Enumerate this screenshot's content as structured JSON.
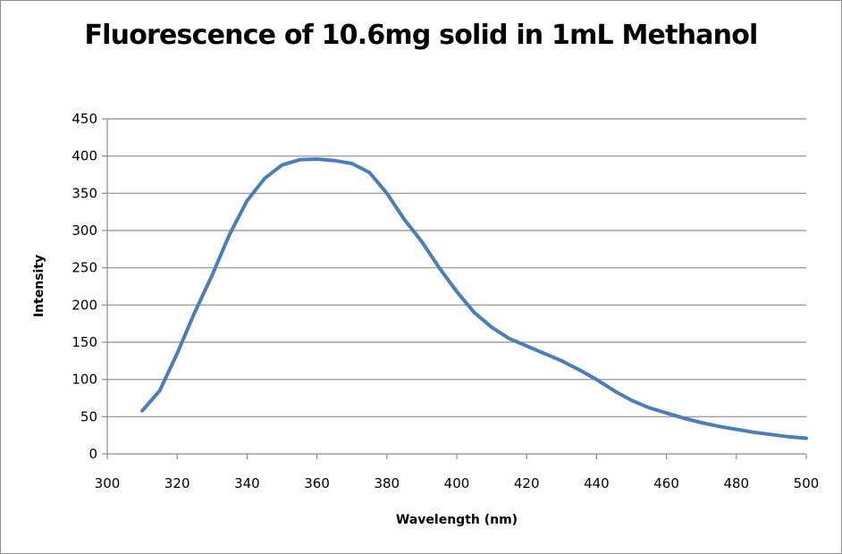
{
  "chart_data": {
    "type": "line",
    "title": "Fluorescence of 10.6mg solid in 1mL Methanol",
    "xlabel": "Wavelength (nm)",
    "ylabel": "Intensity",
    "xlim": [
      300,
      500
    ],
    "ylim": [
      0,
      450
    ],
    "x_ticks": [
      "300",
      "320",
      "340",
      "360",
      "380",
      "400",
      "420",
      "440",
      "460",
      "480",
      "500"
    ],
    "y_ticks": [
      "0",
      "50",
      "100",
      "150",
      "200",
      "250",
      "300",
      "350",
      "400",
      "450"
    ],
    "grid": "horizontal",
    "legend": "none",
    "series": [
      {
        "name": "Intensity",
        "color": "#4a7ebb",
        "x": [
          310,
          315,
          320,
          325,
          330,
          335,
          340,
          345,
          350,
          355,
          360,
          365,
          370,
          375,
          380,
          385,
          390,
          395,
          400,
          405,
          410,
          415,
          420,
          425,
          430,
          435,
          440,
          445,
          450,
          455,
          460,
          465,
          470,
          475,
          480,
          485,
          490,
          495,
          500
        ],
        "y": [
          58,
          85,
          135,
          190,
          240,
          295,
          340,
          370,
          388,
          395,
          396,
          394,
          390,
          378,
          350,
          315,
          285,
          250,
          218,
          190,
          170,
          155,
          145,
          135,
          125,
          113,
          100,
          85,
          72,
          62,
          55,
          48,
          42,
          37,
          33,
          29,
          26,
          23,
          21
        ]
      }
    ]
  }
}
